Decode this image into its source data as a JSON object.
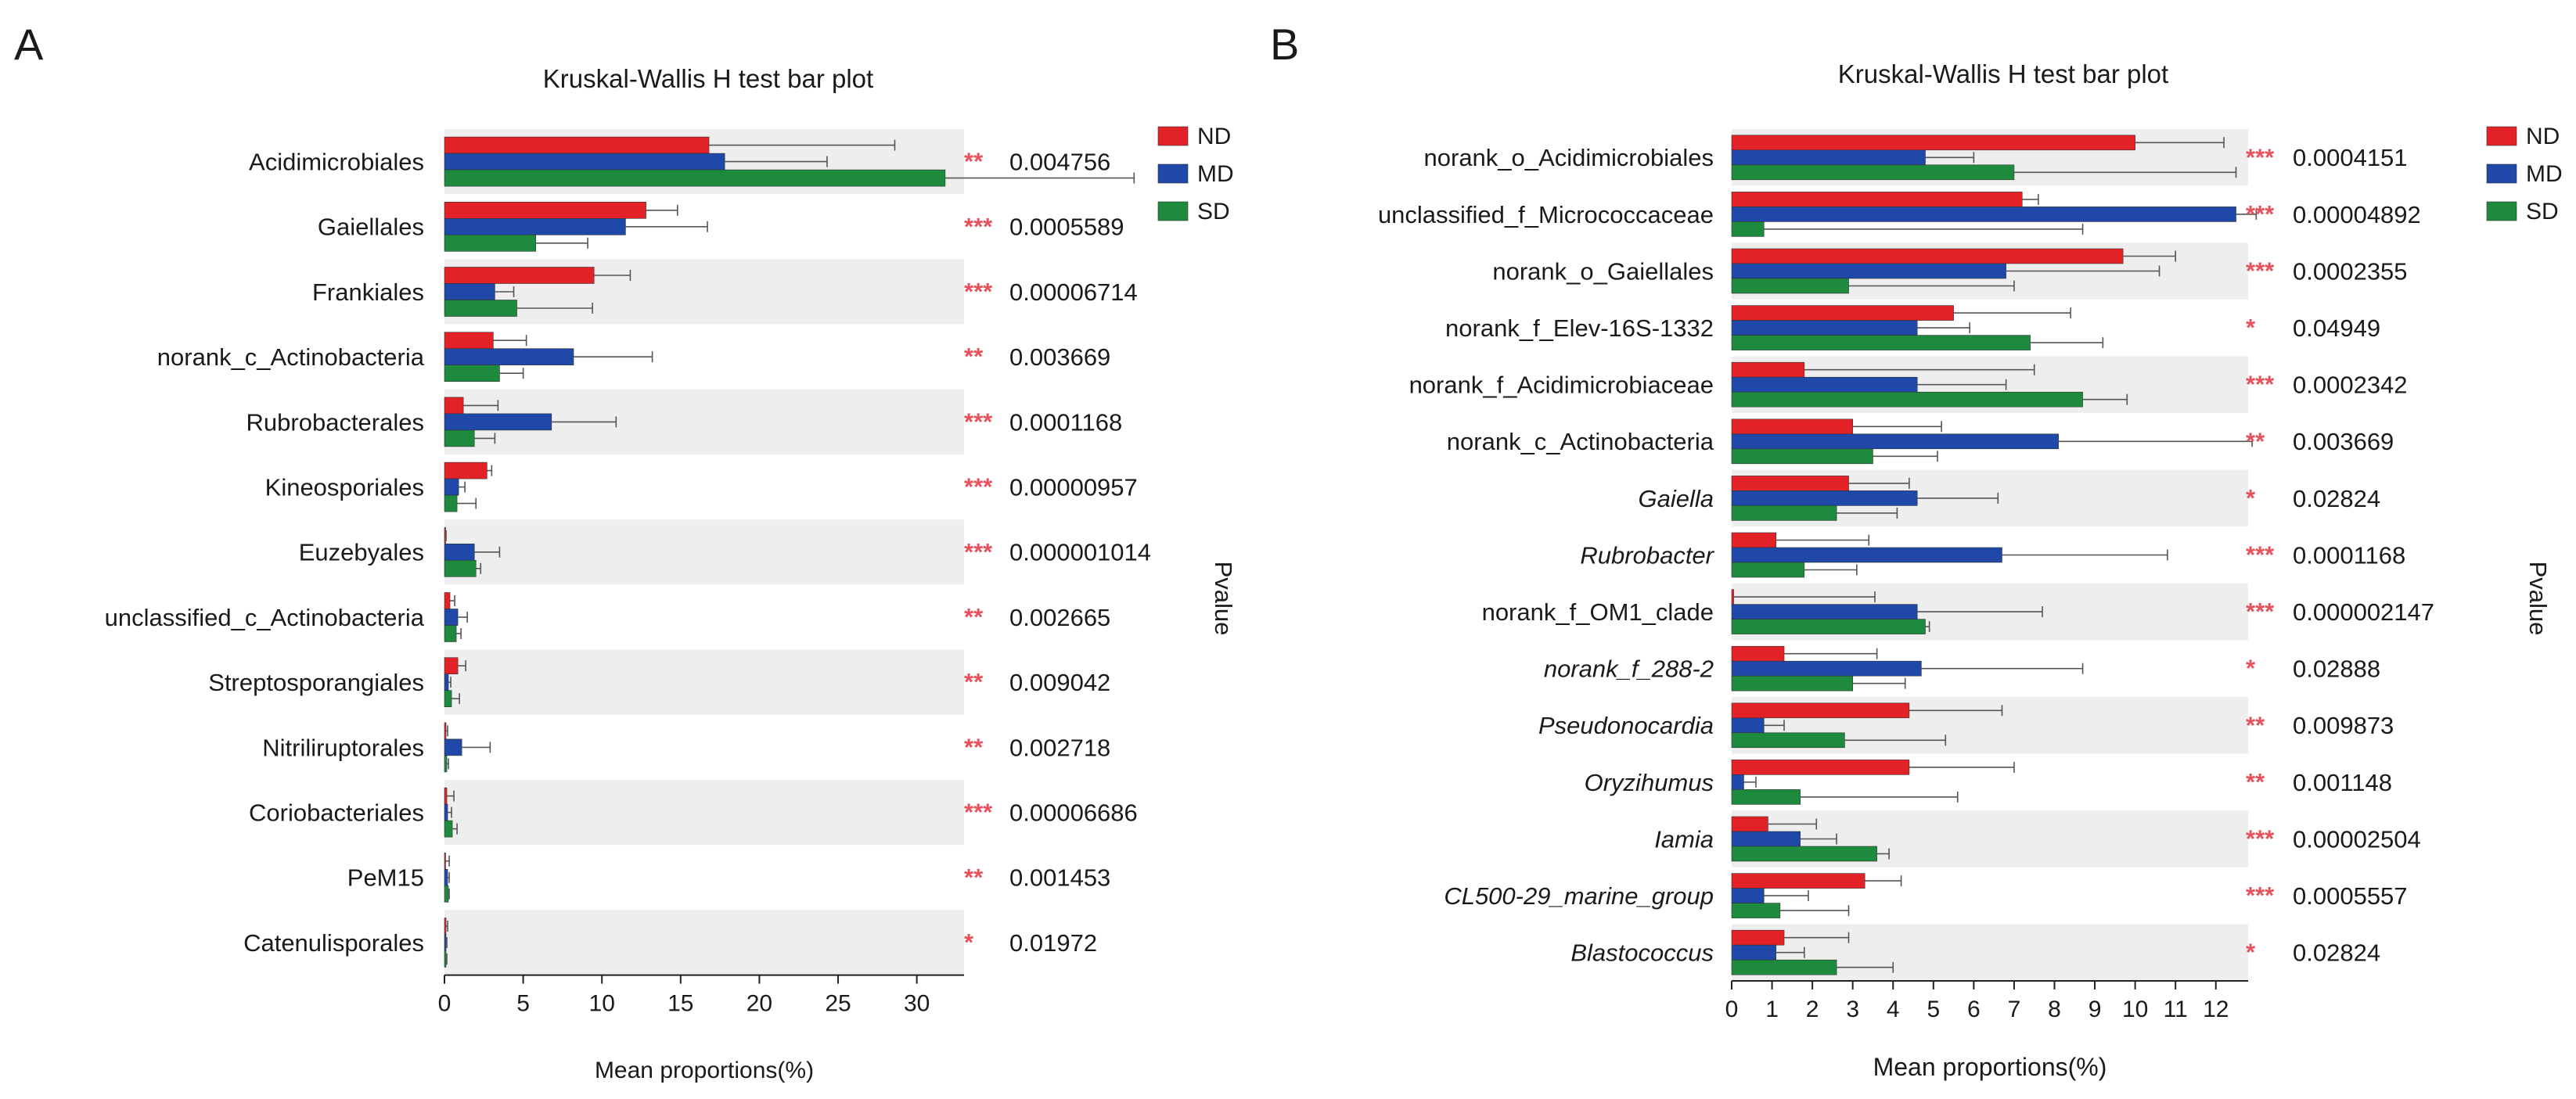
{
  "legend": {
    "entries": [
      {
        "label": "ND",
        "color": "#e32228"
      },
      {
        "label": "MD",
        "color": "#1f48a8"
      },
      {
        "label": "SD",
        "color": "#1e8a3e"
      }
    ]
  },
  "star_color": "#e8505a",
  "stripe_color": "#eeeeee",
  "chart_data": [
    {
      "type": "bar",
      "panel_label": "A",
      "title": "Kruskal-Wallis H test bar plot",
      "xlabel": "Mean proportions(%)",
      "pvalue_label": "Pvalue",
      "xlim": [
        0,
        33
      ],
      "xticks": [
        0,
        5,
        10,
        15,
        20,
        25,
        30
      ],
      "groups": [
        "ND",
        "MD",
        "SD"
      ],
      "categories": [
        {
          "name": "Acidimicrobiales",
          "italic": false,
          "values": [
            16.8,
            17.8,
            31.8
          ],
          "errors": [
            11.8,
            6.5,
            12.0
          ],
          "sig": "**",
          "p": "0.004756"
        },
        {
          "name": "Gaiellales",
          "italic": false,
          "values": [
            12.8,
            11.5,
            5.8
          ],
          "errors": [
            2.0,
            5.2,
            3.3
          ],
          "sig": "***",
          "p": "0.0005589"
        },
        {
          "name": "Frankiales",
          "italic": false,
          "values": [
            9.5,
            3.2,
            4.6
          ],
          "errors": [
            2.3,
            1.2,
            4.8
          ],
          "sig": "***",
          "p": "0.00006714"
        },
        {
          "name": "norank_c_Actinobacteria",
          "italic": false,
          "values": [
            3.1,
            8.2,
            3.5
          ],
          "errors": [
            2.1,
            5.0,
            1.5
          ],
          "sig": "**",
          "p": "0.003669"
        },
        {
          "name": "Rubrobacterales",
          "italic": false,
          "values": [
            1.2,
            6.8,
            1.9
          ],
          "errors": [
            2.2,
            4.1,
            1.3
          ],
          "sig": "***",
          "p": "0.0001168"
        },
        {
          "name": "Kineosporiales",
          "italic": false,
          "values": [
            2.7,
            0.9,
            0.8
          ],
          "errors": [
            0.3,
            0.4,
            1.2
          ],
          "sig": "***",
          "p": "0.00000957"
        },
        {
          "name": "Euzebyales",
          "italic": false,
          "values": [
            0.05,
            1.9,
            2.0
          ],
          "errors": [
            0.05,
            1.6,
            0.3
          ],
          "sig": "***",
          "p": "0.000001014"
        },
        {
          "name": "unclassified_c_Actinobacteria",
          "italic": false,
          "values": [
            0.35,
            0.85,
            0.75
          ],
          "errors": [
            0.3,
            0.6,
            0.3
          ],
          "sig": "**",
          "p": "0.002665"
        },
        {
          "name": "Streptosporangiales",
          "italic": false,
          "values": [
            0.85,
            0.25,
            0.45
          ],
          "errors": [
            0.5,
            0.15,
            0.5
          ],
          "sig": "**",
          "p": "0.009042"
        },
        {
          "name": "Nitriliruptorales",
          "italic": false,
          "values": [
            0.1,
            1.1,
            0.15
          ],
          "errors": [
            0.1,
            1.8,
            0.1
          ],
          "sig": "**",
          "p": "0.002718"
        },
        {
          "name": "Coriobacteriales",
          "italic": false,
          "values": [
            0.15,
            0.2,
            0.5
          ],
          "errors": [
            0.45,
            0.25,
            0.3
          ],
          "sig": "***",
          "p": "0.00006686"
        },
        {
          "name": "PeM15",
          "italic": false,
          "values": [
            0.05,
            0.2,
            0.25
          ],
          "errors": [
            0.25,
            0.1,
            0.05
          ],
          "sig": "**",
          "p": "0.001453"
        },
        {
          "name": "Catenulisporales",
          "italic": false,
          "values": [
            0.1,
            0.1,
            0.1
          ],
          "errors": [
            0.1,
            0.05,
            0.05
          ],
          "sig": "*",
          "p": "0.01972"
        }
      ]
    },
    {
      "type": "bar",
      "panel_label": "B",
      "title": "Kruskal-Wallis H test bar plot",
      "xlabel": "Mean proportions(%)",
      "pvalue_label": "Pvalue",
      "xlim": [
        0,
        12.8
      ],
      "xticks": [
        0,
        1,
        2,
        3,
        4,
        5,
        6,
        7,
        8,
        9,
        10,
        11,
        12
      ],
      "groups": [
        "ND",
        "MD",
        "SD"
      ],
      "categories": [
        {
          "name": "norank_o_Acidimicrobiales",
          "italic": false,
          "values": [
            10.0,
            4.8,
            7.0
          ],
          "errors": [
            2.2,
            1.2,
            5.5
          ],
          "sig": "***",
          "p": "0.0004151"
        },
        {
          "name": "unclassified_f_Micrococcaceae",
          "italic": false,
          "values": [
            7.2,
            12.5,
            0.8
          ],
          "errors": [
            0.4,
            0.5,
            7.9
          ],
          "sig": "***",
          "p": "0.00004892"
        },
        {
          "name": "norank_o_Gaiellales",
          "italic": false,
          "values": [
            9.7,
            6.8,
            2.9
          ],
          "errors": [
            1.3,
            3.8,
            4.1
          ],
          "sig": "***",
          "p": "0.0002355"
        },
        {
          "name": "norank_f_Elev-16S-1332",
          "italic": false,
          "values": [
            5.5,
            4.6,
            7.4
          ],
          "errors": [
            2.9,
            1.3,
            1.8
          ],
          "sig": "*",
          "p": "0.04949"
        },
        {
          "name": "norank_f_Acidimicrobiaceae",
          "italic": false,
          "values": [
            1.8,
            4.6,
            8.7
          ],
          "errors": [
            5.7,
            2.2,
            1.1
          ],
          "sig": "***",
          "p": "0.0002342"
        },
        {
          "name": "norank_c_Actinobacteria",
          "italic": false,
          "values": [
            3.0,
            8.1,
            3.5
          ],
          "errors": [
            2.2,
            4.8,
            1.6
          ],
          "sig": "**",
          "p": "0.003669"
        },
        {
          "name": "Gaiella",
          "italic": true,
          "values": [
            2.9,
            4.6,
            2.6
          ],
          "errors": [
            1.5,
            2.0,
            1.5
          ],
          "sig": "*",
          "p": "0.02824"
        },
        {
          "name": "Rubrobacter",
          "italic": true,
          "values": [
            1.1,
            6.7,
            1.8
          ],
          "errors": [
            2.3,
            4.1,
            1.3
          ],
          "sig": "***",
          "p": "0.0001168"
        },
        {
          "name": "norank_f_OM1_clade",
          "italic": false,
          "values": [
            0.05,
            4.6,
            4.8
          ],
          "errors": [
            3.5,
            3.1,
            0.1
          ],
          "sig": "***",
          "p": "0.000002147"
        },
        {
          "name": "norank_f_288-2",
          "italic": true,
          "values": [
            1.3,
            4.7,
            3.0
          ],
          "errors": [
            2.3,
            4.0,
            1.3
          ],
          "sig": "*",
          "p": "0.02888"
        },
        {
          "name": "Pseudonocardia",
          "italic": true,
          "values": [
            4.4,
            0.8,
            2.8
          ],
          "errors": [
            2.3,
            0.5,
            2.5
          ],
          "sig": "**",
          "p": "0.009873"
        },
        {
          "name": "Oryzihumus",
          "italic": true,
          "values": [
            4.4,
            0.3,
            1.7
          ],
          "errors": [
            2.6,
            0.3,
            3.9
          ],
          "sig": "**",
          "p": "0.001148"
        },
        {
          "name": "Iamia",
          "italic": true,
          "values": [
            0.9,
            1.7,
            3.6
          ],
          "errors": [
            1.2,
            0.9,
            0.3
          ],
          "sig": "***",
          "p": "0.00002504"
        },
        {
          "name": "CL500-29_marine_group",
          "italic": true,
          "values": [
            3.3,
            0.8,
            1.2
          ],
          "errors": [
            0.9,
            1.1,
            1.7
          ],
          "sig": "***",
          "p": "0.0005557"
        },
        {
          "name": "Blastococcus",
          "italic": true,
          "values": [
            1.3,
            1.1,
            2.6
          ],
          "errors": [
            1.6,
            0.7,
            1.4
          ],
          "sig": "*",
          "p": "0.02824"
        }
      ]
    }
  ]
}
